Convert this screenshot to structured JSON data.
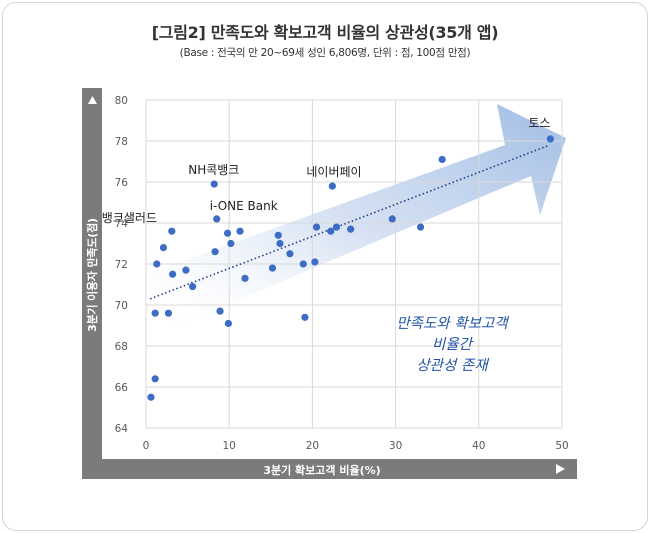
{
  "title": "[그림2] 만족도와 확보고객 비율의 상관성(35개 앱)",
  "subtitle": "(Base : 전국의 만 20~69세 성인 6,806명, 단위 : 점, 100점 만점)",
  "colors": {
    "point": "#3d6cc4",
    "trendline": "#1f3e8c",
    "arrow": "#b9cdea",
    "axis_bar": "#7b7b7b",
    "callout": "#2255a8"
  },
  "chart_data": {
    "type": "scatter",
    "xlabel": "3분기 확보고객 비율(%)",
    "ylabel": "3분기 이용자 만족도(점)",
    "xlim": [
      0,
      50
    ],
    "ylim": [
      64,
      80
    ],
    "xticks": [
      "0",
      "10",
      "20",
      "30",
      "40",
      "50"
    ],
    "yticks": [
      "64",
      "66",
      "68",
      "70",
      "72",
      "74",
      "76",
      "78",
      "80"
    ],
    "grid": true,
    "trendline": {
      "style": "dotted",
      "from": [
        0.5,
        70.3
      ],
      "to": [
        48.5,
        77.8
      ]
    },
    "points": [
      {
        "x": 0.6,
        "y": 65.5
      },
      {
        "x": 1.1,
        "y": 66.4
      },
      {
        "x": 1.1,
        "y": 69.6
      },
      {
        "x": 1.3,
        "y": 72.0
      },
      {
        "x": 2.1,
        "y": 72.8
      },
      {
        "x": 2.7,
        "y": 69.6
      },
      {
        "x": 3.1,
        "y": 73.6
      },
      {
        "x": 3.2,
        "y": 71.5
      },
      {
        "x": 4.8,
        "y": 71.7
      },
      {
        "x": 5.6,
        "y": 70.9
      },
      {
        "x": 8.2,
        "y": 75.9
      },
      {
        "x": 8.3,
        "y": 72.6
      },
      {
        "x": 8.5,
        "y": 74.2
      },
      {
        "x": 8.9,
        "y": 69.7
      },
      {
        "x": 9.8,
        "y": 73.5
      },
      {
        "x": 9.9,
        "y": 69.1
      },
      {
        "x": 10.2,
        "y": 73.0
      },
      {
        "x": 11.3,
        "y": 73.6
      },
      {
        "x": 11.9,
        "y": 71.3
      },
      {
        "x": 15.2,
        "y": 71.8
      },
      {
        "x": 15.9,
        "y": 73.4
      },
      {
        "x": 16.1,
        "y": 73.0
      },
      {
        "x": 17.3,
        "y": 72.5
      },
      {
        "x": 18.9,
        "y": 72.0
      },
      {
        "x": 19.1,
        "y": 69.4
      },
      {
        "x": 20.3,
        "y": 72.1
      },
      {
        "x": 20.5,
        "y": 73.8
      },
      {
        "x": 22.2,
        "y": 73.6
      },
      {
        "x": 22.4,
        "y": 75.8
      },
      {
        "x": 22.9,
        "y": 73.8
      },
      {
        "x": 24.6,
        "y": 73.7
      },
      {
        "x": 29.6,
        "y": 74.2
      },
      {
        "x": 33.0,
        "y": 73.8
      },
      {
        "x": 35.6,
        "y": 77.1
      },
      {
        "x": 48.6,
        "y": 78.1
      }
    ],
    "annotations": [
      {
        "text": "토스",
        "x": 48.6,
        "y": 78.1
      },
      {
        "text": "NH콕뱅크",
        "x": 8.2,
        "y": 75.9
      },
      {
        "text": "네이버페이",
        "x": 22.4,
        "y": 75.8
      },
      {
        "text": "i-ONE Bank",
        "x": 8.5,
        "y": 74.2
      },
      {
        "text": "뱅크샐러드",
        "x": 3.1,
        "y": 73.6
      }
    ],
    "callout": [
      "만족도와 확보고객",
      "비율간",
      "상관성 존재"
    ]
  }
}
